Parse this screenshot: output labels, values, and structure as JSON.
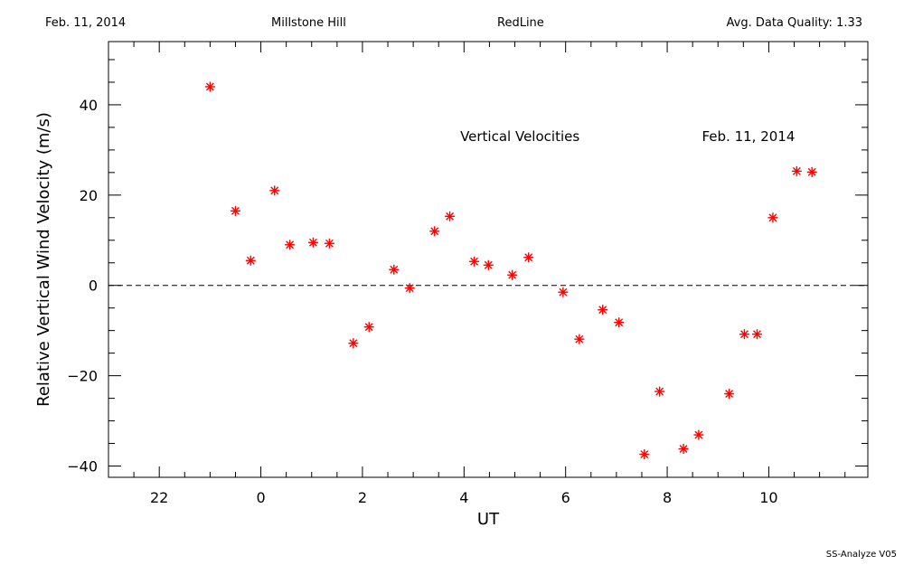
{
  "header": {
    "date": "Feb. 11, 2014",
    "site": "Millstone Hill",
    "line": "RedLine",
    "quality": "Avg. Data Quality: 1.33"
  },
  "footer": {
    "program": "SS-Analyze V05"
  },
  "chart_data": {
    "type": "scatter",
    "xlabel": "UT",
    "ylabel": "Relative Vertical Wind Velocity (m/s)",
    "xlim": [
      21.0,
      35.95
    ],
    "ylim": [
      -42.5,
      54.0
    ],
    "x_major_ticks": [
      22,
      24,
      26,
      28,
      30,
      32,
      34
    ],
    "x_tick_labels": [
      "22",
      "0",
      "2",
      "4",
      "6",
      "8",
      "10"
    ],
    "x_minor_step": 0.5,
    "y_major_ticks": [
      -40,
      -20,
      0,
      20,
      40
    ],
    "y_tick_labels": [
      "−40",
      "−20",
      "0",
      "20",
      "40"
    ],
    "y_minor_step": 5,
    "reference_line": {
      "y": 0,
      "style": "dashed"
    },
    "annotations": [
      {
        "text": "Vertical Velocities",
        "x": 29.1,
        "y": 33
      },
      {
        "text": "Feb. 11, 2014",
        "x": 33.6,
        "y": 33
      }
    ],
    "marker": {
      "symbol": "asterisk",
      "color": "#ff0000"
    },
    "grid": false,
    "points": [
      [
        23.0,
        44.0
      ],
      [
        23.5,
        16.5
      ],
      [
        23.8,
        5.5
      ],
      [
        24.27,
        21.0
      ],
      [
        24.57,
        9.0
      ],
      [
        25.03,
        9.5
      ],
      [
        25.35,
        9.3
      ],
      [
        25.82,
        -12.8
      ],
      [
        26.13,
        -9.2
      ],
      [
        26.62,
        3.5
      ],
      [
        26.93,
        -0.6
      ],
      [
        27.42,
        12.0
      ],
      [
        27.72,
        15.3
      ],
      [
        28.2,
        5.3
      ],
      [
        28.48,
        4.5
      ],
      [
        28.95,
        2.3
      ],
      [
        29.27,
        6.2
      ],
      [
        29.95,
        -1.5
      ],
      [
        30.27,
        -11.9
      ],
      [
        30.73,
        -5.4
      ],
      [
        31.05,
        -8.2
      ],
      [
        31.55,
        -37.4
      ],
      [
        31.85,
        -23.5
      ],
      [
        32.32,
        -36.2
      ],
      [
        32.62,
        -33.1
      ],
      [
        33.22,
        -24.0
      ],
      [
        33.52,
        -10.8
      ],
      [
        33.77,
        -10.8
      ],
      [
        34.08,
        15.0
      ],
      [
        34.55,
        25.3
      ],
      [
        34.85,
        25.1
      ]
    ]
  }
}
